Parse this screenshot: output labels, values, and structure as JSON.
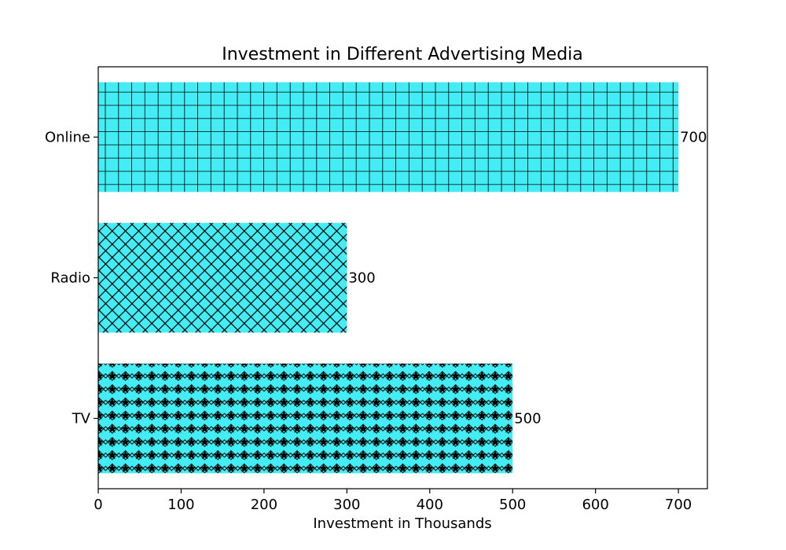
{
  "chart_data": {
    "type": "bar",
    "orientation": "horizontal",
    "title": "Investment in Different Advertising Media",
    "xlabel": "Investment in Thousands",
    "ylabel": "",
    "categories": [
      "TV",
      "Radio",
      "Online"
    ],
    "values": [
      500,
      300,
      700
    ],
    "value_labels": [
      "500",
      "300",
      "700"
    ],
    "hatches": [
      "stars",
      "crosshatch",
      "grid"
    ],
    "xlim": [
      0,
      735
    ],
    "xticks": [
      0,
      100,
      200,
      300,
      400,
      500,
      600,
      700
    ],
    "xtick_labels": [
      "0",
      "100",
      "200",
      "300",
      "400",
      "500",
      "600",
      "700"
    ],
    "grid": false,
    "legend": "none",
    "bar_color": "#44ecf4",
    "hatch_color": "#000000"
  }
}
